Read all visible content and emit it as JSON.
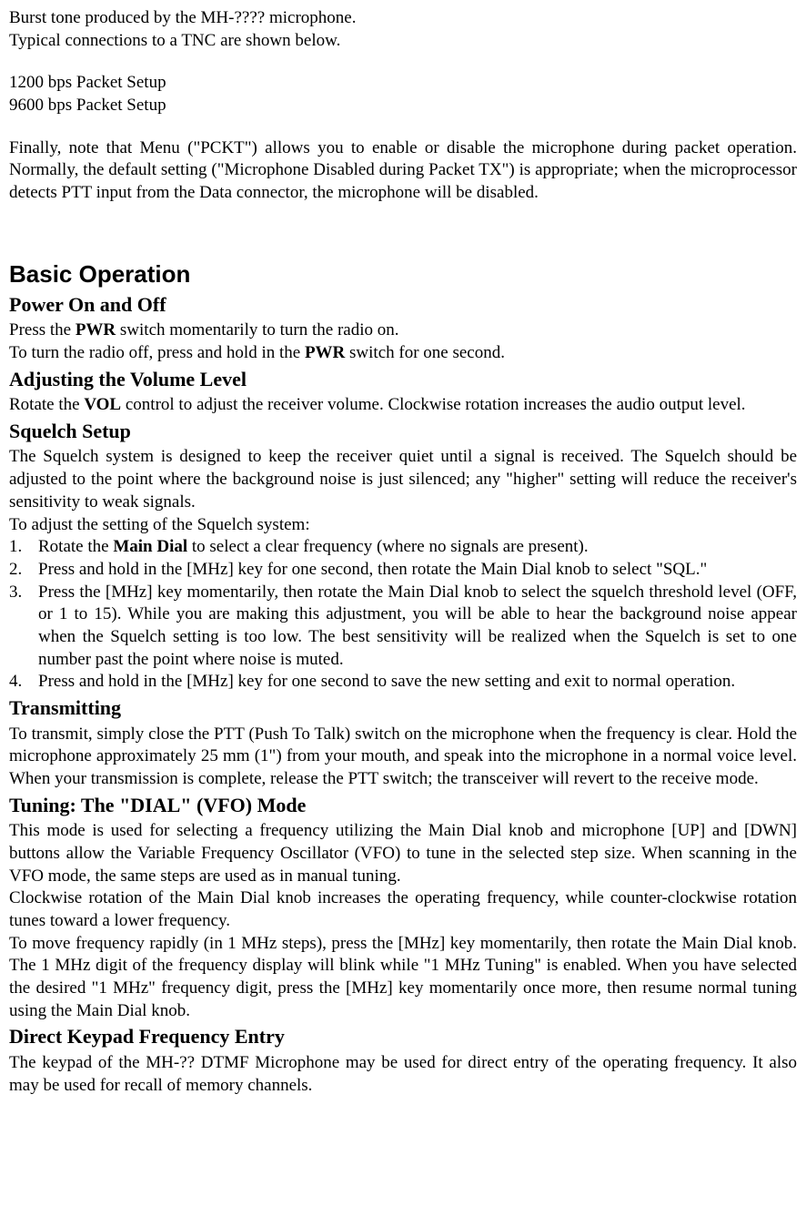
{
  "intro": {
    "line1_pre": "Burst tone produced by the MH-???? microphone.",
    "line2": "Typical connections to a TNC are shown below.",
    "setup1": "1200 bps Packet Setup",
    "setup2": "9600 bps Packet Setup",
    "para_a": "Finally, note that Menu (\"PCKT\") allows you to enable or disable the microphone during packet operation. Normally, the default setting (\"Microphone Disabled during Packet TX\") is appropriate; when the microprocessor detects PTT input from the Data connector, the microphone will be disabled."
  },
  "basic": {
    "title": "Basic Operation",
    "power": {
      "heading": "Power On and Off",
      "p1_pre": "Press the ",
      "p1_bold": "PWR",
      "p1_post": " switch momentarily to turn the radio on.",
      "p2_pre": "To turn the radio off, press and hold in the ",
      "p2_bold": "PWR",
      "p2_post": " switch for one second."
    },
    "volume": {
      "heading": "Adjusting the Volume Level",
      "p1_pre": "Rotate the ",
      "p1_bold": "VOL",
      "p1_post": " control to adjust the receiver volume. Clockwise rotation increases the audio output level."
    },
    "squelch": {
      "heading": "Squelch Setup",
      "p1": "The Squelch system is designed to keep the receiver quiet until a signal is received. The Squelch should be adjusted to the point where the background noise is just silenced; any \"higher\" setting will reduce the receiver's sensitivity to weak signals.",
      "p2": "To adjust the setting of the Squelch system:",
      "items": [
        {
          "num": "1.",
          "pre": "Rotate the ",
          "bold": "Main Dial",
          "post": " to select a clear frequency (where no signals are present)."
        },
        {
          "num": "2.",
          "text": "Press and hold in the [MHz] key for one second, then rotate the Main Dial knob to select \"SQL.\""
        },
        {
          "num": "3.",
          "text": "Press the [MHz] key momentarily, then rotate the Main Dial knob to select the squelch threshold level (OFF, or 1 to 15). While you are making this adjustment, you will be able to hear the background noise appear when the Squelch setting is too low. The best sensitivity will be realized when the Squelch is set to one number past the point where noise is muted."
        },
        {
          "num": "4.",
          "text": "Press and hold in the [MHz] key for one second to save the new setting and exit to normal operation."
        }
      ]
    },
    "transmitting": {
      "heading": "Transmitting",
      "p1": "To transmit, simply close the PTT (Push To Talk) switch on the microphone when the frequency is clear. Hold the microphone approximately 25 mm (1\") from your mouth, and speak into the microphone in a normal voice level. When your transmission is complete, release the PTT switch; the transceiver will revert to the receive mode."
    },
    "tuning": {
      "heading": "Tuning: The \"DIAL\" (VFO) Mode",
      "p1": "This mode is used for selecting a frequency  utilizing the Main Dial knob and microphone [UP] and [DWN] buttons allow the Variable Frequency Oscillator (VFO) to tune in the selected step size. When scanning in the VFO mode, the same steps are used as in manual tuning.",
      "p2": "Clockwise rotation of the Main Dial knob increases the operating frequency, while counter-clockwise rotation tunes toward a lower frequency.",
      "p3": "To move frequency rapidly (in 1 MHz steps), press the [MHz] key momentarily, then rotate the Main Dial knob. The 1 MHz digit of the frequency display will blink while \"1 MHz Tuning\" is enabled. When  you have selected the desired \"1 MHz\" frequency digit, press the [MHz] key momentarily once more, then resume normal tuning using the Main Dial knob."
    },
    "keypad": {
      "heading": "Direct Keypad Frequency  Entry",
      "p1": "The keypad of the MH-?? DTMF Microphone may be used for direct entry of the operating frequency. It also may be used for recall of memory channels."
    }
  }
}
